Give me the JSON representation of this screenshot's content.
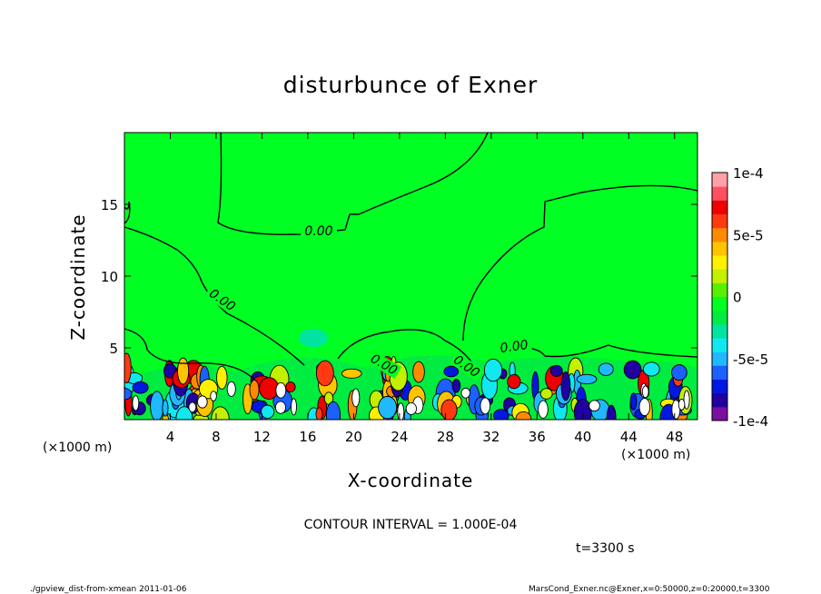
{
  "chart_data": {
    "type": "heatmap",
    "title": "disturbunce of Exner",
    "xlabel": "X-coordinate",
    "ylabel": "Z-coordinate",
    "x_unit": "(×1000 m)",
    "y_unit": "(×1000 m)",
    "xlim": [
      0,
      50
    ],
    "ylim": [
      0,
      20
    ],
    "x_ticks": [
      "4",
      "8",
      "12",
      "16",
      "20",
      "24",
      "28",
      "32",
      "36",
      "40",
      "44",
      "48"
    ],
    "y_ticks": [
      "5",
      "10",
      "15"
    ],
    "colorbar": {
      "range": [
        -0.0001,
        0.0001
      ],
      "tick_labels": [
        "1e-4",
        "5e-5",
        "0",
        "-5e-5",
        "-1e-4"
      ],
      "colors": [
        "#7b0fa0",
        "#2000a0",
        "#0018e0",
        "#1c60ff",
        "#20b8ff",
        "#10e8f0",
        "#00e4a0",
        "#00ec40",
        "#00ff22",
        "#58f000",
        "#c4f000",
        "#fff000",
        "#ffc400",
        "#ff8a00",
        "#ff3a10",
        "#f00000",
        "#ff5060",
        "#ffa0a8"
      ]
    },
    "contour_interval": "CONTOUR INTERVAL = 1.000E-04",
    "contour_labels": [
      "0.00",
      "0.00",
      "0.00",
      "0.00",
      "0.00"
    ],
    "time": "t=3300 s",
    "footer_left": "./gpview_dist-from-xmean  2011-01-06",
    "footer_right": "MarsCond_Exner.nc@Exner,x=0:50000,z=0:20000,t=3300",
    "colors": {
      "background_field": "#00ff22",
      "contour": "#000000"
    }
  }
}
